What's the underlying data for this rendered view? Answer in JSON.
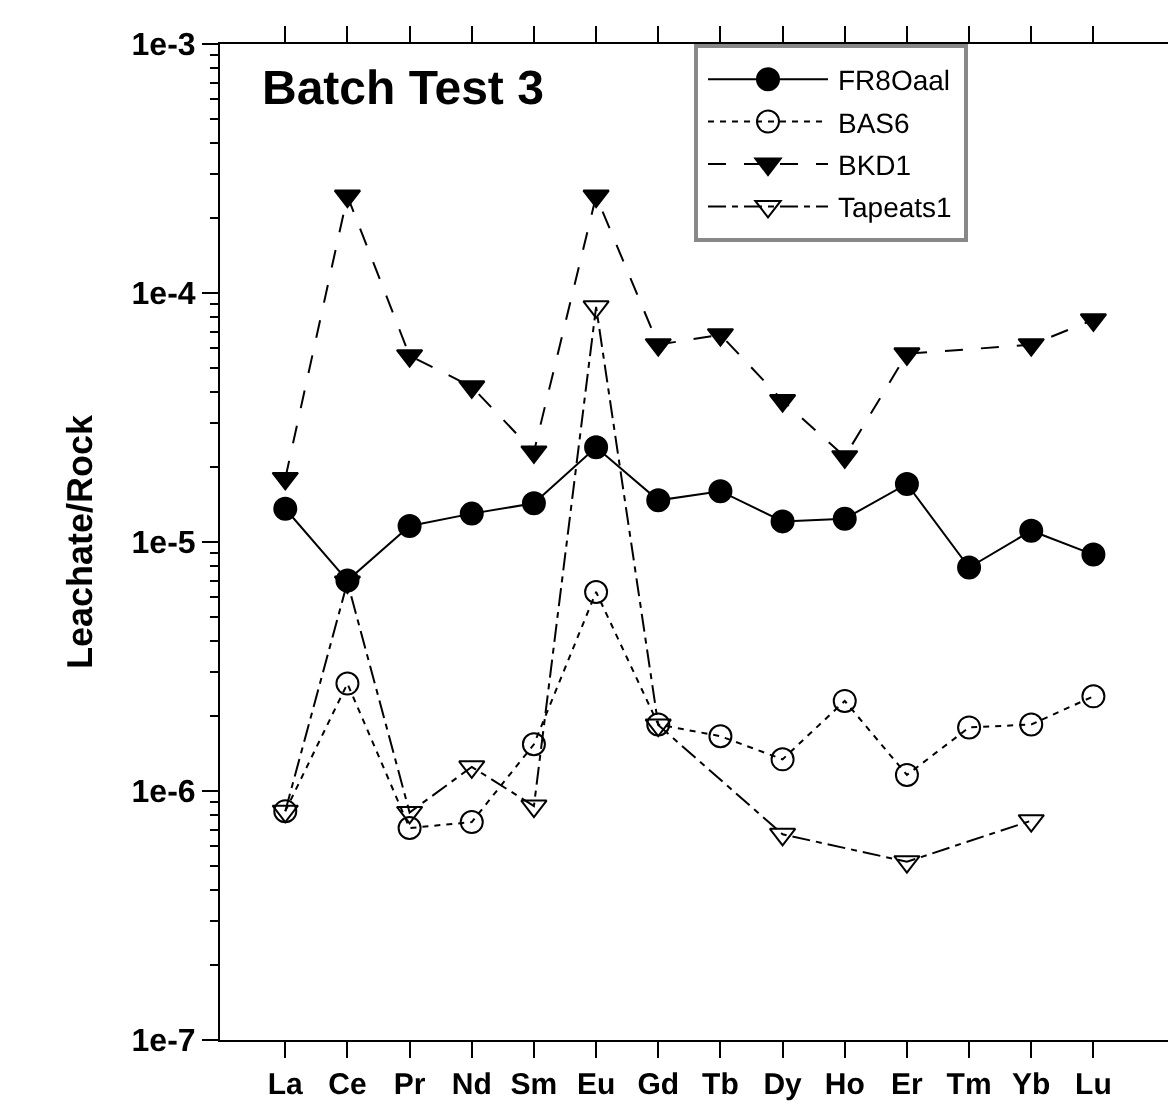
{
  "chart_data": {
    "type": "line",
    "title": "Batch Test 3",
    "ylabel": "Leachate/Rock",
    "log": "y",
    "categories": [
      "La",
      "Ce",
      "Pr",
      "Nd",
      "Sm",
      "Eu",
      "Gd",
      "Tb",
      "Dy",
      "Ho",
      "Er",
      "Tm",
      "Yb",
      "Lu"
    ],
    "ylim": [
      1e-07,
      0.001
    ],
    "yticks": [
      {
        "value": 1e-07,
        "label": "1e-7"
      },
      {
        "value": 1e-06,
        "label": "1e-6"
      },
      {
        "value": 1e-05,
        "label": "1e-5"
      },
      {
        "value": 0.0001,
        "label": "1e-4"
      },
      {
        "value": 0.001,
        "label": "1e-3"
      }
    ],
    "legend": "top right",
    "series": [
      {
        "name": "FR8Oaal",
        "color": "#000000",
        "marker": "circle",
        "line_style": "solid",
        "values": [
          1.36e-05,
          7e-06,
          1.16e-05,
          1.3e-05,
          1.43e-05,
          2.4e-05,
          1.47e-05,
          1.6e-05,
          1.21e-05,
          1.24e-05,
          1.71e-05,
          7.9e-06,
          1.11e-05,
          8.9e-06
        ]
      },
      {
        "name": "BAS6",
        "color": "#000000",
        "marker": "circle",
        "line_style": "dotted",
        "values": [
          8.3e-07,
          2.7e-06,
          7.1e-07,
          7.5e-07,
          1.54e-06,
          6.3e-06,
          1.85e-06,
          1.66e-06,
          1.34e-06,
          2.3e-06,
          1.16e-06,
          1.8e-06,
          1.85e-06,
          2.4e-06
        ]
      },
      {
        "name": "BKD1",
        "color": "#000000",
        "marker": "triangle",
        "line_style": "dashed",
        "values": [
          1.8e-05,
          0.000245,
          5.6e-05,
          4.2e-05,
          2.3e-05,
          0.000245,
          6.2e-05,
          6.8e-05,
          3.7e-05,
          2.2e-05,
          5.7e-05,
          null,
          6.2e-05,
          7.8e-05
        ]
      },
      {
        "name": "Tapeats1",
        "color": "#000000",
        "marker": "triangle",
        "line_style": "dashdot",
        "values": [
          8.3e-07,
          6.9e-06,
          8.2e-07,
          1.25e-06,
          8.7e-07,
          8.8e-05,
          1.84e-06,
          null,
          6.7e-07,
          null,
          5.2e-07,
          null,
          7.6e-07,
          null
        ]
      }
    ]
  }
}
